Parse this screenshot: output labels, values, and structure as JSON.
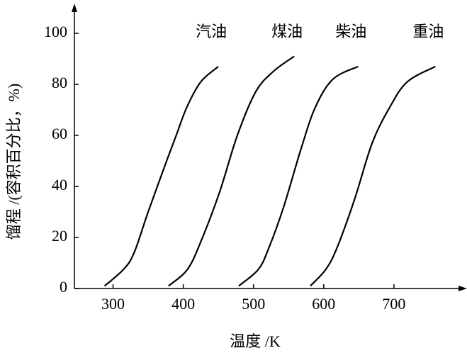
{
  "chart_data": {
    "type": "line",
    "x_label": "温度 /K",
    "y_label": "馏程 /(容积百分比，%)",
    "xlim": [
      245,
      800
    ],
    "ylim": [
      0,
      110
    ],
    "xticks": [
      300,
      400,
      500,
      600,
      700
    ],
    "yticks": [
      0,
      20,
      40,
      60,
      80,
      100
    ],
    "series": [
      {
        "name": "汽油",
        "color": "#000000",
        "x": [
          288,
          315,
          330,
          350,
          375,
          390,
          405,
          425,
          450
        ],
        "values": [
          1,
          7.5,
          14,
          30,
          49,
          60,
          71,
          81,
          87
        ]
      },
      {
        "name": "煤油",
        "color": "#000000",
        "x": [
          379,
          406,
          426,
          452,
          477,
          503,
          528,
          558
        ],
        "values": [
          1,
          7.5,
          19,
          38,
          60,
          77,
          85,
          91
        ]
      },
      {
        "name": "柴油",
        "color": "#000000",
        "x": [
          479,
          507,
          522,
          543,
          568,
          588,
          613,
          649
        ],
        "values": [
          1,
          7.5,
          16,
          32,
          55,
          71,
          82,
          87
        ]
      },
      {
        "name": "重油",
        "color": "#000000",
        "x": [
          581,
          603,
          619,
          644,
          669,
          694,
          719,
          759
        ],
        "values": [
          1,
          7.5,
          16,
          35,
          57,
          71,
          81,
          87
        ]
      }
    ]
  }
}
